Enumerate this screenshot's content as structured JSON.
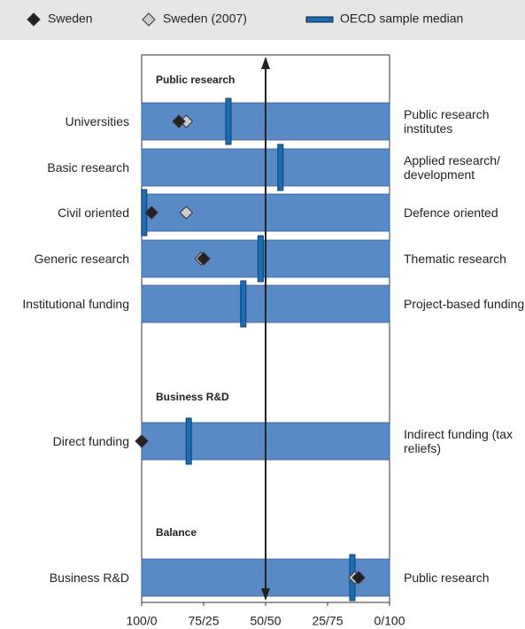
{
  "chart_data": {
    "type": "dot",
    "sections": [
      "Public research",
      "Business R&D",
      "Balance"
    ],
    "categories": [
      "Universities",
      "Basic research",
      "Civil oriented",
      "Generic research",
      "Institutional funding",
      "Direct funding",
      "Business R&D"
    ],
    "right_categories": [
      "Public research institutes",
      "Applied research/ development",
      "Defence oriented",
      "Thematic research",
      "Project-based funding",
      "Indirect funding (tax reliefs)",
      "Public research"
    ],
    "series": [
      {
        "name": "Sweden",
        "color": "#222222",
        "marker": "diamond",
        "values": [
          85,
          null,
          96,
          75,
          null,
          100,
          12.5
        ]
      },
      {
        "name": "Sweden (2007)",
        "color": "#cccccc",
        "marker": "diamond",
        "values": [
          82,
          null,
          82,
          76,
          null,
          null,
          14
        ]
      },
      {
        "name": "OECD sample median",
        "color": "#1a6db5",
        "marker": "bar",
        "values": [
          65,
          44,
          99,
          52,
          59,
          81,
          15
        ]
      }
    ],
    "bar_color": "#5a8ac6",
    "xlim": [
      100,
      0
    ],
    "xticks": [
      {
        "value": 100,
        "label": "100/0"
      },
      {
        "value": 75,
        "label": "75/25"
      },
      {
        "value": 50,
        "label": "50/50"
      },
      {
        "value": 25,
        "label": "25/75"
      },
      {
        "value": 0,
        "label": "0/100"
      }
    ]
  }
}
